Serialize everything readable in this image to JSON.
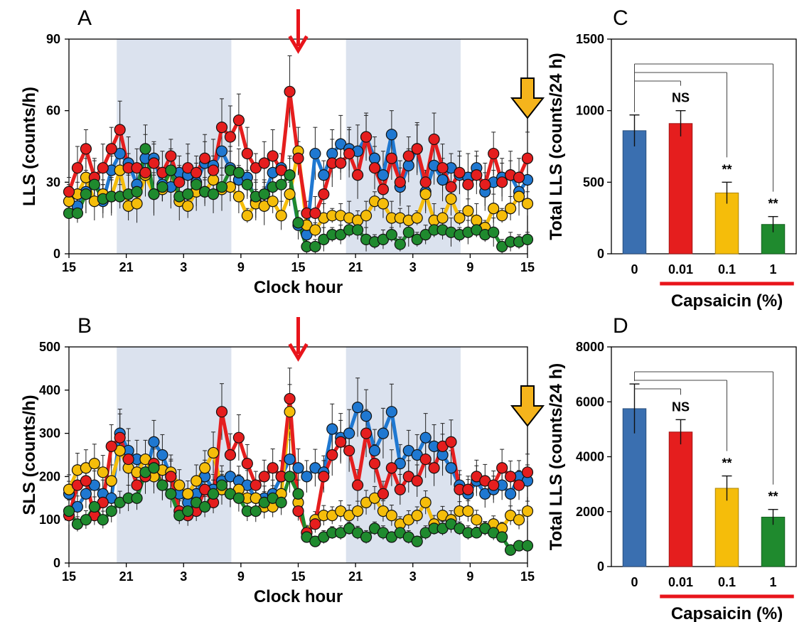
{
  "chart_data": [
    {
      "panel": "A",
      "type": "line",
      "ylabel": "LLS (counts/h)",
      "xlabel": "Clock hour",
      "ylim": [
        0,
        90
      ],
      "yticks": [
        "0",
        "30",
        "60",
        "90"
      ],
      "xticks": [
        "15",
        "21",
        "3",
        "9",
        "15",
        "21",
        "3",
        "9",
        "15"
      ],
      "x_range_hours": [
        0,
        48
      ],
      "dark_phases_hours": [
        [
          5,
          17
        ],
        [
          29,
          41
        ]
      ],
      "marker": "capsaicin arrow (red) at 24 h, end arrow (orange) at 48 h",
      "series": [
        {
          "color": "#1f78d1",
          "values": [
            22,
            20,
            26,
            32,
            22,
            35,
            42,
            38,
            29,
            40,
            40,
            29,
            28,
            34,
            33,
            30,
            38,
            37,
            43,
            36,
            31,
            32,
            22,
            25,
            34,
            36,
            33,
            12,
            8,
            42,
            33,
            42,
            46,
            44,
            43,
            49,
            40,
            33,
            50,
            28,
            37,
            44,
            26,
            37,
            31,
            36,
            33,
            32,
            36,
            26,
            30,
            32,
            33,
            26,
            31
          ]
        },
        {
          "color": "#f5bd0a",
          "values": [
            22,
            25,
            32,
            22,
            25,
            24,
            35,
            20,
            21,
            33,
            25,
            27,
            35,
            22,
            20,
            26,
            26,
            31,
            27,
            28,
            24,
            16,
            21,
            20,
            22,
            16,
            25,
            43,
            12,
            10,
            15,
            16,
            16,
            15,
            14,
            16,
            22,
            21,
            15,
            15,
            14,
            15,
            25,
            14,
            15,
            23,
            15,
            18,
            14,
            11,
            19,
            16,
            19,
            24,
            21
          ]
        },
        {
          "color": "#e51e1e",
          "values": [
            26,
            36,
            44,
            32,
            36,
            44,
            52,
            36,
            36,
            34,
            38,
            34,
            41,
            30,
            36,
            34,
            40,
            35,
            53,
            49,
            56,
            42,
            36,
            38,
            41,
            35,
            68,
            40,
            17,
            17,
            25,
            38,
            38,
            42,
            33,
            49,
            36,
            27,
            40,
            30,
            41,
            44,
            30,
            48,
            36,
            28,
            34,
            29,
            33,
            29,
            42,
            30,
            33,
            32,
            40
          ]
        },
        {
          "color": "#1f8a2e",
          "values": [
            17,
            17,
            25,
            29,
            23,
            24,
            24,
            25,
            26,
            44,
            25,
            28,
            35,
            24,
            25,
            29,
            26,
            25,
            28,
            35,
            34,
            29,
            24,
            25,
            28,
            29,
            33,
            13,
            3,
            3,
            6,
            8,
            8,
            10,
            10,
            6,
            5,
            6,
            8,
            4,
            9,
            6,
            8,
            10,
            10,
            9,
            8,
            9,
            10,
            8,
            9,
            3,
            5,
            5,
            6
          ]
        }
      ]
    },
    {
      "panel": "B",
      "type": "line",
      "ylabel": "SLS (counts/h)",
      "xlabel": "Clock hour",
      "ylim": [
        0,
        500
      ],
      "yticks": [
        "0",
        "100",
        "200",
        "300",
        "400",
        "500"
      ],
      "xticks": [
        "15",
        "21",
        "3",
        "9",
        "15",
        "21",
        "3",
        "9",
        "15"
      ],
      "x_range_hours": [
        0,
        48
      ],
      "dark_phases_hours": [
        [
          5,
          17
        ],
        [
          29,
          41
        ]
      ],
      "marker": "capsaicin arrow (red) at 24 h, end arrow (orange) at 48 h",
      "series": [
        {
          "color": "#1f78d1",
          "values": [
            160,
            130,
            160,
            180,
            160,
            150,
            300,
            260,
            240,
            200,
            280,
            250,
            200,
            160,
            140,
            160,
            200,
            170,
            190,
            200,
            190,
            180,
            150,
            150,
            160,
            200,
            240,
            220,
            200,
            220,
            210,
            310,
            290,
            300,
            360,
            340,
            260,
            300,
            350,
            230,
            260,
            250,
            290,
            270,
            250,
            220,
            180,
            160,
            190,
            160,
            170,
            180,
            160,
            200,
            190
          ]
        },
        {
          "color": "#f5bd0a",
          "values": [
            170,
            215,
            220,
            230,
            210,
            190,
            260,
            220,
            210,
            240,
            200,
            215,
            210,
            180,
            160,
            190,
            220,
            255,
            170,
            160,
            170,
            150,
            150,
            130,
            130,
            160,
            350,
            140,
            70,
            100,
            110,
            110,
            120,
            110,
            120,
            140,
            150,
            120,
            110,
            90,
            100,
            110,
            140,
            90,
            110,
            100,
            120,
            120,
            100,
            80,
            90,
            80,
            110,
            100,
            120
          ]
        },
        {
          "color": "#e51e1e",
          "values": [
            110,
            180,
            190,
            110,
            140,
            270,
            290,
            240,
            180,
            200,
            230,
            180,
            200,
            120,
            110,
            120,
            170,
            140,
            350,
            250,
            290,
            230,
            180,
            200,
            220,
            200,
            380,
            120,
            70,
            90,
            200,
            250,
            280,
            260,
            180,
            300,
            230,
            160,
            220,
            170,
            200,
            190,
            240,
            220,
            270,
            280,
            170,
            170,
            200,
            190,
            180,
            220,
            200,
            180,
            210
          ]
        },
        {
          "color": "#1f8a2e",
          "values": [
            120,
            90,
            100,
            130,
            100,
            120,
            140,
            150,
            150,
            210,
            220,
            180,
            160,
            110,
            120,
            140,
            130,
            160,
            180,
            160,
            150,
            120,
            120,
            140,
            150,
            140,
            200,
            160,
            60,
            50,
            60,
            70,
            70,
            80,
            70,
            60,
            80,
            70,
            60,
            70,
            60,
            50,
            70,
            80,
            80,
            90,
            80,
            70,
            70,
            80,
            70,
            60,
            30,
            40,
            40
          ]
        }
      ]
    },
    {
      "panel": "C",
      "type": "bar",
      "ylabel": "Total LLS (counts/24 h)",
      "xlabel": "Capsaicin (%)",
      "categories": [
        "0",
        "0.01",
        "0.1",
        "1"
      ],
      "values": [
        860,
        910,
        425,
        205
      ],
      "errors": [
        110,
        90,
        75,
        55
      ],
      "colors": [
        "#3a6fb0",
        "#e51e1e",
        "#f5bd0a",
        "#1f8a2e"
      ],
      "significance": [
        "",
        "NS",
        "**",
        "**"
      ],
      "ylim": [
        0,
        1500
      ],
      "yticks": [
        "0",
        "500",
        "1000",
        "1500"
      ]
    },
    {
      "panel": "D",
      "type": "bar",
      "ylabel": "Total LLS (counts/24 h)",
      "xlabel": "Capsaicin (%)",
      "categories": [
        "0",
        "0.01",
        "0.1",
        "1"
      ],
      "values": [
        5750,
        4900,
        2850,
        1800
      ],
      "errors": [
        900,
        450,
        450,
        280
      ],
      "colors": [
        "#3a6fb0",
        "#e51e1e",
        "#f5bd0a",
        "#1f8a2e"
      ],
      "significance": [
        "",
        "NS",
        "**",
        "**"
      ],
      "ylim": [
        0,
        8000
      ],
      "yticks": [
        "0",
        "2000",
        "4000",
        "6000",
        "8000"
      ]
    }
  ]
}
